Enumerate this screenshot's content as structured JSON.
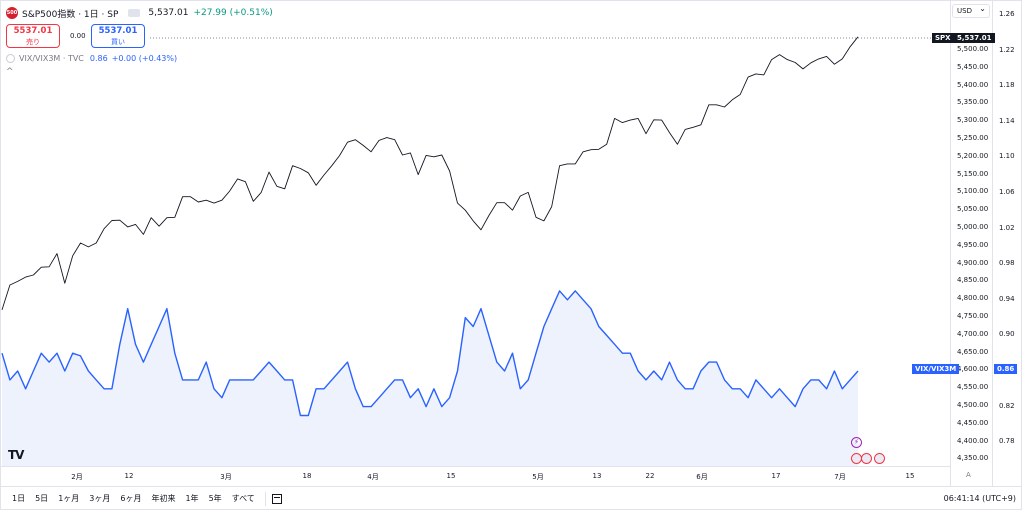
{
  "header": {
    "symbol_badge": "500",
    "symbol_title": "S&P500指数 · 1日 · SP",
    "price": "5,537.01",
    "change": "+27.99 (+0.51%)"
  },
  "orders": {
    "sell_price": "5537.01",
    "sell_label": "売り",
    "spread": "0.00",
    "buy_price": "5537.01",
    "buy_label": "買い"
  },
  "secondary_legend": {
    "name": "VIX/VIX3M · TVC",
    "value": "0.86",
    "change": "+0.00 (+0.43%)",
    "collapse": "^"
  },
  "price_scale": {
    "currency": "USD",
    "ticks": [
      "5,500.00",
      "5,450.00",
      "5,400.00",
      "5,350.00",
      "5,300.00",
      "5,250.00",
      "5,200.00",
      "5,150.00",
      "5,100.00",
      "5,050.00",
      "5,000.00",
      "4,950.00",
      "4,900.00",
      "4,850.00",
      "4,800.00",
      "4,750.00",
      "4,700.00",
      "4,650.00",
      "4,600.00",
      "4,550.00",
      "4,500.00",
      "4,450.00",
      "4,400.00",
      "4,350.00"
    ],
    "spx_tag": "SPX",
    "spx_value": "5,537.01",
    "vix_tag": "VIX/VIX3M",
    "auto_label": "A"
  },
  "vix_scale": {
    "ticks": [
      "1.26",
      "1.22",
      "1.18",
      "1.14",
      "1.10",
      "1.06",
      "1.02",
      "0.98",
      "0.94",
      "0.90",
      "0.86",
      "0.82",
      "0.78"
    ],
    "value": "0.86"
  },
  "time_axis": {
    "labels": [
      "2月",
      "12",
      "3月",
      "18",
      "4月",
      "15",
      "5月",
      "13",
      "22",
      "6月",
      "17",
      "7月",
      "15"
    ]
  },
  "bottom_bar": {
    "ranges": [
      "1日",
      "5日",
      "1ヶ月",
      "3ヶ月",
      "6ヶ月",
      "年初来",
      "1年",
      "5年",
      "すべて"
    ],
    "clock": "06:41:14 (UTC+9)"
  },
  "colors": {
    "spx_line": "#131722",
    "vix_line": "#2962ff",
    "vix_fill": "#eef2fd",
    "sell": "#f23645",
    "buy": "#2962ff"
  },
  "logo_text": "TV",
  "chart_data": {
    "type": "line",
    "series": [
      {
        "name": "SPX",
        "values": [
          4770,
          4840,
          4850,
          4862,
          4868,
          4890,
          4891,
          4928,
          4845,
          4922,
          4958,
          4947,
          4958,
          4998,
          5021,
          5022,
          5003,
          5010,
          4982,
          5029,
          5005,
          5029,
          5030,
          5088,
          5088,
          5073,
          5078,
          5070,
          5078,
          5104,
          5138,
          5130,
          5075,
          5100,
          5157,
          5117,
          5110,
          5175,
          5167,
          5155,
          5120,
          5149,
          5175,
          5204,
          5241,
          5248,
          5232,
          5214,
          5246,
          5254,
          5248,
          5205,
          5211,
          5150,
          5204,
          5200,
          5205,
          5160,
          5070,
          5050,
          5020,
          4995,
          5035,
          5071,
          5071,
          5050,
          5090,
          5100,
          5030,
          5020,
          5060,
          5175,
          5180,
          5180,
          5214,
          5220,
          5221,
          5235,
          5308,
          5296,
          5303,
          5308,
          5265,
          5304,
          5303,
          5268,
          5235,
          5277,
          5283,
          5290,
          5346,
          5346,
          5340,
          5360,
          5375,
          5424,
          5433,
          5430,
          5473,
          5487,
          5473,
          5465,
          5447,
          5464,
          5475,
          5482,
          5460,
          5475,
          5509,
          5537
        ]
      },
      {
        "name": "VIX/VIX3M",
        "values": [
          0.88,
          0.85,
          0.86,
          0.84,
          0.86,
          0.88,
          0.87,
          0.88,
          0.86,
          0.88,
          0.877,
          0.86,
          0.85,
          0.84,
          0.84,
          0.89,
          0.93,
          0.89,
          0.87,
          0.89,
          0.91,
          0.93,
          0.88,
          0.85,
          0.85,
          0.85,
          0.87,
          0.84,
          0.83,
          0.85,
          0.85,
          0.85,
          0.85,
          0.86,
          0.87,
          0.86,
          0.85,
          0.85,
          0.81,
          0.81,
          0.84,
          0.84,
          0.85,
          0.86,
          0.87,
          0.84,
          0.82,
          0.82,
          0.83,
          0.84,
          0.85,
          0.85,
          0.83,
          0.84,
          0.82,
          0.84,
          0.82,
          0.83,
          0.86,
          0.92,
          0.91,
          0.93,
          0.9,
          0.87,
          0.86,
          0.88,
          0.84,
          0.85,
          0.88,
          0.91,
          0.93,
          0.95,
          0.94,
          0.95,
          0.94,
          0.93,
          0.91,
          0.9,
          0.89,
          0.88,
          0.88,
          0.86,
          0.85,
          0.86,
          0.85,
          0.87,
          0.85,
          0.84,
          0.84,
          0.86,
          0.87,
          0.87,
          0.85,
          0.84,
          0.84,
          0.83,
          0.85,
          0.84,
          0.83,
          0.84,
          0.83,
          0.82,
          0.84,
          0.85,
          0.85,
          0.84,
          0.86,
          0.84,
          0.85,
          0.86
        ]
      }
    ]
  }
}
